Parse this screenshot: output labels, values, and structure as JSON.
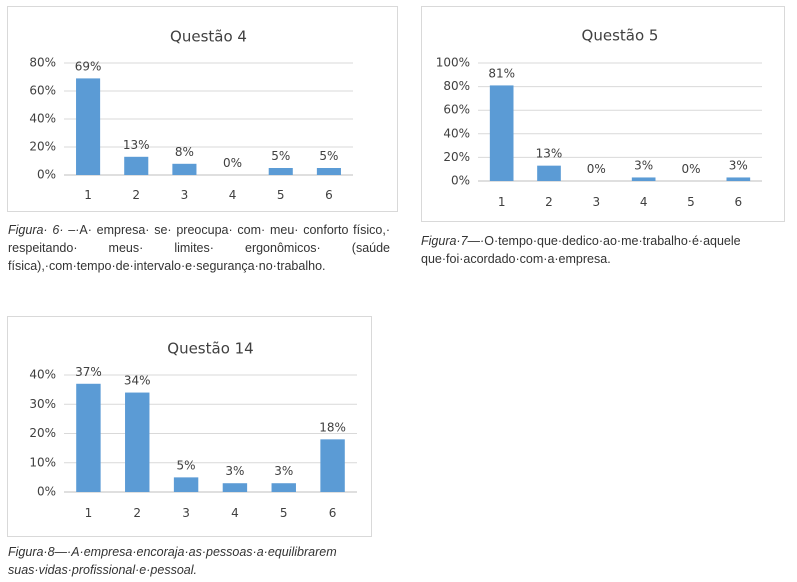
{
  "chart_data": [
    {
      "type": "bar",
      "title": "Questão 4",
      "categories": [
        "1",
        "2",
        "3",
        "4",
        "5",
        "6"
      ],
      "values": [
        69,
        13,
        8,
        0,
        5,
        5
      ],
      "value_labels": [
        "69%",
        "13%",
        "8%",
        "0%",
        "5%",
        "5%"
      ],
      "yticks": [
        "0%",
        "20%",
        "40%",
        "60%",
        "80%"
      ],
      "ylim": [
        0,
        80
      ],
      "xlabel": "",
      "ylabel": "",
      "grid": true,
      "bar_color": "#5b9bd5"
    },
    {
      "type": "bar",
      "title": "Questão 5",
      "categories": [
        "1",
        "2",
        "3",
        "4",
        "5",
        "6"
      ],
      "values": [
        81,
        13,
        0,
        3,
        0,
        3
      ],
      "value_labels": [
        "81%",
        "13%",
        "0%",
        "3%",
        "0%",
        "3%"
      ],
      "yticks": [
        "0%",
        "20%",
        "40%",
        "60%",
        "80%",
        "100%"
      ],
      "ylim": [
        0,
        100
      ],
      "xlabel": "",
      "ylabel": "",
      "grid": true,
      "bar_color": "#5b9bd5"
    },
    {
      "type": "bar",
      "title": "Questão 14",
      "categories": [
        "1",
        "2",
        "3",
        "4",
        "5",
        "6"
      ],
      "values": [
        37,
        34,
        5,
        3,
        3,
        18
      ],
      "value_labels": [
        "37%",
        "34%",
        "5%",
        "3%",
        "3%",
        "18%"
      ],
      "yticks": [
        "0%",
        "10%",
        "20%",
        "30%",
        "40%"
      ],
      "ylim": [
        0,
        40
      ],
      "xlabel": "",
      "ylabel": "",
      "grid": true,
      "bar_color": "#5b9bd5"
    }
  ],
  "captions": [
    {
      "figure": "Figura· 6· –·",
      "text": "A· empresa· se· preocupa· com· meu· conforto físico,· respeitando· meus· limites· ergonômicos· (saúde física),·com·tempo·de·intervalo·e·segurança·no·trabalho."
    },
    {
      "figure": "Figura·7—·",
      "text": "O·tempo·que·dedico·ao·me·trabalho·é·aquele que·foi·acordado·com·a·empresa."
    },
    {
      "figure": "Figura·8—·",
      "text": "A·empresa·encoraja·as·pessoas·a·equilibrarem suas·vidas·profissional·e·pessoal."
    }
  ]
}
